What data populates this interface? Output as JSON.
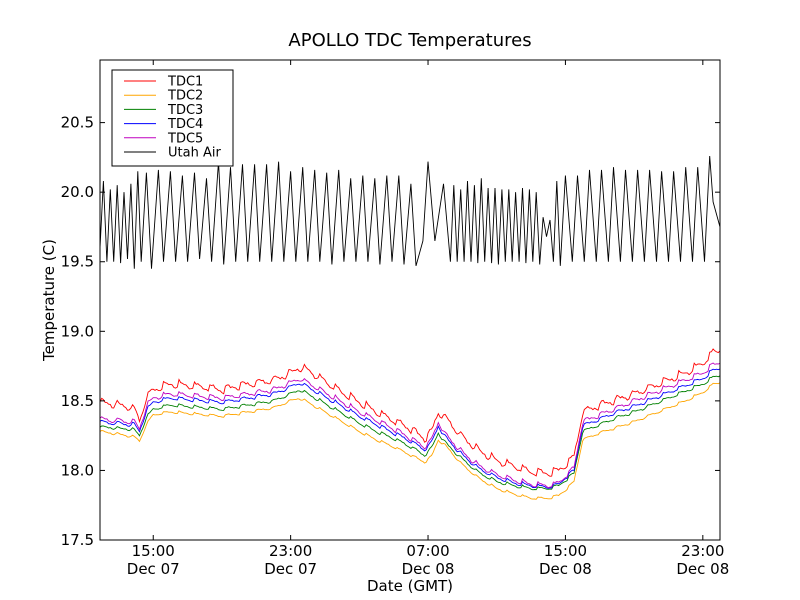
{
  "chart_data": {
    "type": "line",
    "title": "APOLLO TDC Temperatures",
    "xlabel": "Date (GMT)",
    "ylabel": "Temperature (C)",
    "x_units": "hours since Dec 07 00:00 GMT",
    "xlim": [
      11.9,
      48.0
    ],
    "ylim": [
      17.5,
      20.95
    ],
    "grid": false,
    "legend_position": "top-left",
    "x_ticks": [
      {
        "value": 15,
        "line1": "15:00",
        "line2": "Dec 07"
      },
      {
        "value": 23,
        "line1": "23:00",
        "line2": "Dec 07"
      },
      {
        "value": 31,
        "line1": "07:00",
        "line2": "Dec 08"
      },
      {
        "value": 39,
        "line1": "15:00",
        "line2": "Dec 08"
      },
      {
        "value": 47,
        "line1": "23:00",
        "line2": "Dec 08"
      }
    ],
    "y_ticks": [
      17.5,
      18.0,
      18.5,
      19.0,
      19.5,
      20.0,
      20.5
    ],
    "y_tick_labels": [
      "17.5",
      "18.0",
      "18.5",
      "19.0",
      "19.5",
      "20.0",
      "20.5"
    ],
    "series": [
      {
        "name": "TDC1",
        "color": "#ff0000",
        "x": [
          11.9,
          12.5,
          13,
          13.5,
          13.9,
          14.2,
          14.6,
          15,
          16,
          17,
          18,
          19,
          20,
          21,
          22,
          23,
          23.5,
          24,
          25,
          26,
          27,
          28,
          29,
          30,
          30.8,
          31.2,
          31.6,
          32,
          33,
          34,
          35,
          36,
          37,
          38,
          38.6,
          39,
          39.5,
          40,
          41,
          42,
          43,
          44,
          45,
          46,
          47,
          47.6,
          48
        ],
        "y": [
          18.49,
          18.48,
          18.47,
          18.46,
          18.44,
          18.36,
          18.52,
          18.58,
          18.62,
          18.61,
          18.6,
          18.58,
          18.61,
          18.63,
          18.65,
          18.7,
          18.74,
          18.72,
          18.64,
          18.56,
          18.49,
          18.42,
          18.36,
          18.3,
          18.23,
          18.28,
          18.42,
          18.38,
          18.24,
          18.14,
          18.07,
          18.03,
          17.99,
          17.98,
          18.0,
          18.04,
          18.1,
          18.42,
          18.47,
          18.51,
          18.55,
          18.6,
          18.65,
          18.7,
          18.77,
          18.85,
          18.86
        ],
        "ripple": 0.06
      },
      {
        "name": "TDC2",
        "color": "#ffa500",
        "x": [
          11.9,
          12.5,
          13,
          13.5,
          13.9,
          14.2,
          14.6,
          15,
          16,
          17,
          18,
          19,
          20,
          21,
          22,
          23,
          23.5,
          24,
          25,
          26,
          27,
          28,
          29,
          30,
          30.8,
          31.2,
          31.6,
          32,
          33,
          34,
          35,
          36,
          37,
          38,
          38.6,
          39,
          39.5,
          40,
          41,
          42,
          43,
          44,
          45,
          46,
          47,
          47.6,
          48
        ],
        "y": [
          18.28,
          18.27,
          18.26,
          18.25,
          18.24,
          18.21,
          18.33,
          18.4,
          18.42,
          18.41,
          18.4,
          18.39,
          18.41,
          18.43,
          18.45,
          18.5,
          18.52,
          18.49,
          18.42,
          18.35,
          18.28,
          18.22,
          18.17,
          18.11,
          18.06,
          18.1,
          18.22,
          18.18,
          18.04,
          17.94,
          17.87,
          17.83,
          17.8,
          17.8,
          17.82,
          17.86,
          17.92,
          18.22,
          18.27,
          18.31,
          18.35,
          18.4,
          18.45,
          18.5,
          18.56,
          18.62,
          18.63
        ],
        "ripple": 0.02
      },
      {
        "name": "TDC3",
        "color": "#008000",
        "x": [
          11.9,
          12.5,
          13,
          13.5,
          13.9,
          14.2,
          14.6,
          15,
          16,
          17,
          18,
          19,
          20,
          21,
          22,
          23,
          23.5,
          24,
          25,
          26,
          27,
          28,
          29,
          30,
          30.8,
          31.2,
          31.6,
          32,
          33,
          34,
          35,
          36,
          37,
          38,
          38.6,
          39,
          39.5,
          40,
          41,
          42,
          43,
          44,
          45,
          46,
          47,
          47.6,
          48
        ],
        "y": [
          18.31,
          18.31,
          18.3,
          18.3,
          18.29,
          18.25,
          18.38,
          18.44,
          18.47,
          18.46,
          18.45,
          18.44,
          18.46,
          18.48,
          18.5,
          18.55,
          18.58,
          18.55,
          18.48,
          18.41,
          18.34,
          18.28,
          18.23,
          18.17,
          18.11,
          18.16,
          18.27,
          18.2,
          18.08,
          17.98,
          17.92,
          17.89,
          17.87,
          17.87,
          17.89,
          17.93,
          17.98,
          18.28,
          18.33,
          18.38,
          18.42,
          18.47,
          18.52,
          18.57,
          18.62,
          18.67,
          18.68
        ],
        "ripple": 0.025
      },
      {
        "name": "TDC4",
        "color": "#0000ff",
        "x": [
          11.9,
          12.5,
          13,
          13.5,
          13.9,
          14.2,
          14.6,
          15,
          16,
          17,
          18,
          19,
          20,
          21,
          22,
          23,
          23.5,
          24,
          25,
          26,
          27,
          28,
          29,
          30,
          30.8,
          31.2,
          31.6,
          32,
          33,
          34,
          35,
          36,
          37,
          38,
          38.6,
          39,
          39.5,
          40,
          41,
          42,
          43,
          44,
          45,
          46,
          47,
          47.6,
          48
        ],
        "y": [
          18.35,
          18.34,
          18.34,
          18.33,
          18.33,
          18.28,
          18.43,
          18.49,
          18.52,
          18.51,
          18.5,
          18.49,
          18.51,
          18.53,
          18.55,
          18.6,
          18.63,
          18.6,
          18.53,
          18.46,
          18.39,
          18.33,
          18.27,
          18.21,
          18.15,
          18.2,
          18.32,
          18.24,
          18.11,
          18.01,
          17.95,
          17.91,
          17.89,
          17.88,
          17.9,
          17.95,
          18.0,
          18.32,
          18.37,
          18.42,
          18.46,
          18.51,
          18.56,
          18.61,
          18.66,
          18.72,
          18.73
        ],
        "ripple": 0.03
      },
      {
        "name": "TDC5",
        "color": "#bf00bf",
        "x": [
          11.9,
          12.5,
          13,
          13.5,
          13.9,
          14.2,
          14.6,
          15,
          16,
          17,
          18,
          19,
          20,
          21,
          22,
          23,
          23.5,
          24,
          25,
          26,
          27,
          28,
          29,
          30,
          30.8,
          31.2,
          31.6,
          32,
          33,
          34,
          35,
          36,
          37,
          38,
          38.6,
          39,
          39.5,
          40,
          41,
          42,
          43,
          44,
          45,
          46,
          47,
          47.6,
          48
        ],
        "y": [
          18.37,
          18.36,
          18.36,
          18.35,
          18.35,
          18.3,
          18.46,
          18.52,
          18.55,
          18.54,
          18.53,
          18.52,
          18.54,
          18.56,
          18.58,
          18.63,
          18.66,
          18.63,
          18.56,
          18.49,
          18.42,
          18.36,
          18.3,
          18.23,
          18.17,
          18.22,
          18.35,
          18.26,
          18.13,
          18.03,
          17.97,
          17.93,
          17.9,
          17.89,
          17.91,
          17.96,
          18.02,
          18.35,
          18.4,
          18.45,
          18.5,
          18.55,
          18.6,
          18.65,
          18.7,
          18.76,
          18.77
        ],
        "ripple": 0.04
      },
      {
        "name": "Utah Air",
        "color": "#000000",
        "x": [
          11.9,
          12.1,
          12.3,
          12.5,
          12.7,
          12.9,
          13.1,
          13.3,
          13.5,
          13.7,
          13.9,
          14.1,
          14.3,
          14.6,
          14.9,
          15.3,
          15.6,
          16.0,
          16.3,
          16.7,
          17.0,
          17.4,
          17.7,
          18.1,
          18.4,
          18.8,
          19.1,
          19.5,
          19.8,
          20.2,
          20.5,
          20.9,
          21.2,
          21.6,
          21.9,
          22.3,
          22.6,
          23.0,
          23.3,
          23.7,
          24.0,
          24.4,
          24.7,
          25.1,
          25.4,
          25.8,
          26.1,
          26.5,
          26.8,
          27.2,
          27.5,
          27.9,
          28.2,
          28.6,
          28.9,
          29.3,
          29.6,
          30.0,
          30.3,
          30.7,
          31.0,
          31.4,
          31.9,
          32.3,
          32.5,
          32.7,
          32.9,
          33.1,
          33.3,
          33.5,
          33.7,
          33.9,
          34.1,
          34.3,
          34.5,
          34.7,
          34.9,
          35.1,
          35.3,
          35.5,
          35.7,
          35.9,
          36.1,
          36.3,
          36.5,
          36.7,
          36.9,
          37.1,
          37.3,
          37.5,
          37.7,
          37.9,
          38.1,
          38.3,
          38.5,
          38.7,
          39.0,
          39.4,
          39.7,
          40.1,
          40.4,
          40.8,
          41.1,
          41.5,
          41.8,
          42.2,
          42.5,
          42.9,
          43.2,
          43.6,
          43.9,
          44.3,
          44.6,
          45.0,
          45.3,
          45.7,
          46.0,
          46.4,
          46.7,
          47.1,
          47.4,
          47.6,
          48.0
        ],
        "y": [
          19.6,
          20.08,
          19.5,
          20.02,
          19.5,
          20.05,
          19.49,
          20.0,
          19.52,
          20.06,
          19.45,
          20.15,
          19.5,
          20.14,
          19.45,
          20.16,
          19.5,
          20.15,
          19.5,
          20.12,
          19.5,
          20.14,
          19.52,
          20.1,
          19.5,
          20.22,
          19.48,
          20.18,
          19.5,
          20.2,
          19.5,
          20.2,
          19.5,
          20.2,
          19.5,
          20.22,
          19.5,
          20.15,
          19.5,
          20.18,
          19.5,
          20.16,
          19.5,
          20.14,
          19.48,
          20.16,
          19.5,
          20.1,
          19.5,
          20.12,
          19.5,
          20.1,
          19.48,
          20.12,
          19.5,
          20.12,
          19.48,
          20.06,
          19.47,
          19.65,
          20.22,
          19.65,
          20.06,
          19.5,
          20.05,
          19.5,
          20.02,
          19.5,
          20.08,
          19.5,
          20.05,
          19.49,
          20.1,
          19.5,
          20.03,
          19.49,
          20.03,
          19.48,
          20.02,
          19.5,
          20.02,
          19.5,
          20.0,
          19.5,
          20.03,
          19.49,
          20.02,
          19.5,
          20.0,
          19.48,
          19.82,
          19.68,
          19.8,
          19.5,
          20.08,
          19.47,
          20.12,
          19.5,
          20.12,
          19.5,
          20.16,
          19.5,
          20.16,
          19.5,
          20.18,
          19.5,
          20.16,
          19.5,
          20.16,
          19.5,
          20.16,
          19.5,
          20.15,
          19.5,
          20.15,
          19.5,
          20.18,
          19.5,
          20.18,
          19.5,
          20.26,
          19.93,
          19.75
        ]
      }
    ]
  }
}
